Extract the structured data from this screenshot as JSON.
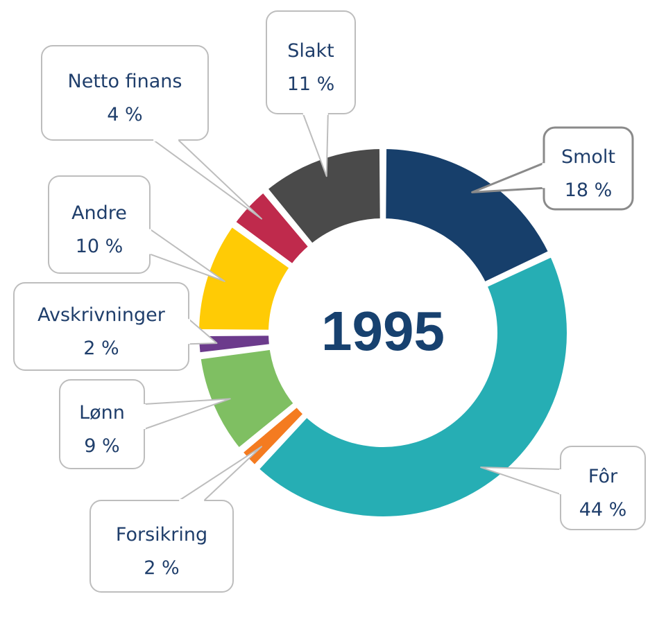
{
  "chart_data": {
    "type": "pie",
    "style": "donut",
    "center_label": "1995",
    "start_angle_deg": 0,
    "direction": "clockwise",
    "slices": [
      {
        "label": "Smolt",
        "value_label": "18 %",
        "value": 18,
        "color": "#173f6b"
      },
      {
        "label": "Fôr",
        "value_label": "44 %",
        "value": 44,
        "color": "#26aeb4"
      },
      {
        "label": "Forsikring",
        "value_label": "2 %",
        "value": 2,
        "color": "#f47b20"
      },
      {
        "label": "Lønn",
        "value_label": "9 %",
        "value": 9,
        "color": "#7fbf62"
      },
      {
        "label": "Avskrivninger",
        "value_label": "2 %",
        "value": 2,
        "color": "#6c3b8c"
      },
      {
        "label": "Andre",
        "value_label": "10 %",
        "value": 10,
        "color": "#ffcb05"
      },
      {
        "label": "Netto finans",
        "value_label": "4 %",
        "value": 4,
        "color": "#bf2a4c"
      },
      {
        "label": "Slakt",
        "value_label": "11 %",
        "value": 11,
        "color": "#4a4a4a"
      }
    ]
  }
}
